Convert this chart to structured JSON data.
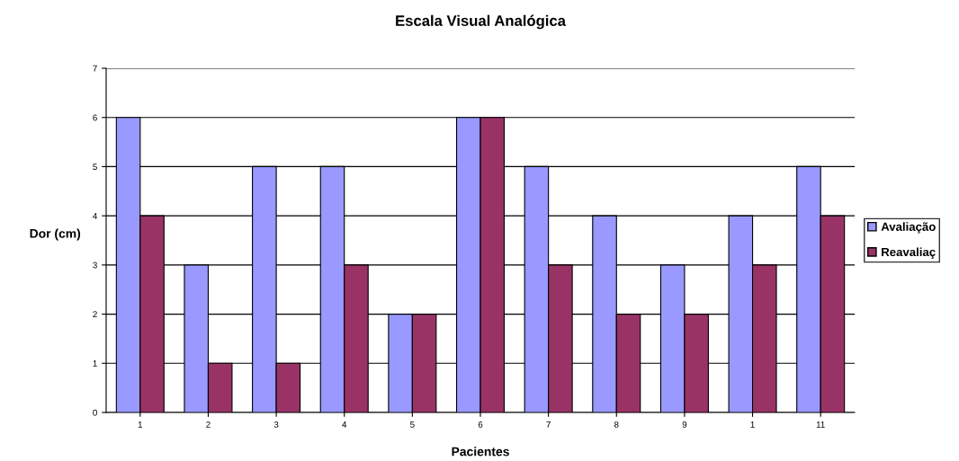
{
  "chart_data": {
    "type": "bar",
    "title": "Escala Visual Analógica",
    "xlabel": "Pacientes",
    "ylabel": "Dor (cm)",
    "categories": [
      "1",
      "2",
      "3",
      "4",
      "5",
      "6",
      "7",
      "8",
      "9",
      "1",
      "11"
    ],
    "series": [
      {
        "name": "Avaliação",
        "color": "#9999ff",
        "values": [
          6,
          3,
          5,
          5,
          2,
          6,
          5,
          4,
          3,
          4,
          5
        ]
      },
      {
        "name": "Reavaliaç",
        "color": "#993366",
        "values": [
          4,
          1,
          1,
          3,
          2,
          6,
          3,
          2,
          2,
          3,
          4
        ]
      }
    ],
    "ylim": [
      0,
      7
    ],
    "yticks": [
      0,
      1,
      2,
      3,
      4,
      5,
      6,
      7
    ],
    "grid": "y",
    "legend": "right"
  }
}
